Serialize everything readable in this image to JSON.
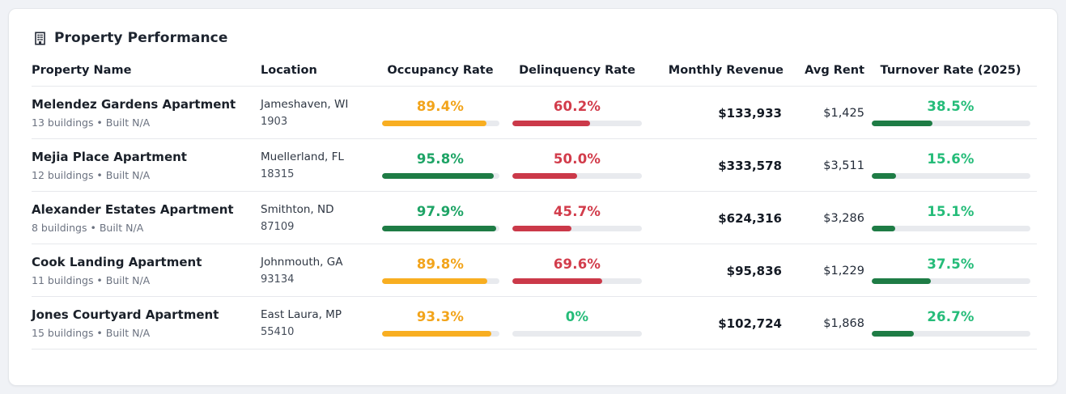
{
  "header": {
    "icon": "building-icon",
    "title": "Property Performance"
  },
  "table": {
    "columns": {
      "name": "Property Name",
      "location": "Location",
      "occupancy": "Occupancy Rate",
      "delinquency": "Delinquency Rate",
      "revenue": "Monthly Revenue",
      "avg_rent": "Avg Rent",
      "turnover": "Turnover Rate (2025)"
    },
    "rows": [
      {
        "name": "Melendez Gardens Apartment",
        "details": "13 buildings • Built N/A",
        "city": "Jameshaven, WI",
        "zip": "1903",
        "occupancy": {
          "label": "89.4%",
          "value": 89.4,
          "tone": "amber"
        },
        "delinquency": {
          "label": "60.2%",
          "value": 60.2,
          "tone": "red"
        },
        "revenue": "$133,933",
        "avg_rent": "$1,425",
        "turnover": {
          "label": "38.5%",
          "value": 38.5,
          "tone": "bright"
        }
      },
      {
        "name": "Mejia Place Apartment",
        "details": "12 buildings • Built N/A",
        "city": "Muellerland, FL",
        "zip": "18315",
        "occupancy": {
          "label": "95.8%",
          "value": 95.8,
          "tone": "green"
        },
        "delinquency": {
          "label": "50.0%",
          "value": 50.0,
          "tone": "red"
        },
        "revenue": "$333,578",
        "avg_rent": "$3,511",
        "turnover": {
          "label": "15.6%",
          "value": 15.6,
          "tone": "bright"
        }
      },
      {
        "name": "Alexander Estates Apartment",
        "details": "8 buildings • Built N/A",
        "city": "Smithton, ND",
        "zip": "87109",
        "occupancy": {
          "label": "97.9%",
          "value": 97.9,
          "tone": "green"
        },
        "delinquency": {
          "label": "45.7%",
          "value": 45.7,
          "tone": "red"
        },
        "revenue": "$624,316",
        "avg_rent": "$3,286",
        "turnover": {
          "label": "15.1%",
          "value": 15.1,
          "tone": "bright"
        }
      },
      {
        "name": "Cook Landing Apartment",
        "details": "11 buildings • Built N/A",
        "city": "Johnmouth, GA",
        "zip": "93134",
        "occupancy": {
          "label": "89.8%",
          "value": 89.8,
          "tone": "amber"
        },
        "delinquency": {
          "label": "69.6%",
          "value": 69.6,
          "tone": "red"
        },
        "revenue": "$95,836",
        "avg_rent": "$1,229",
        "turnover": {
          "label": "37.5%",
          "value": 37.5,
          "tone": "bright"
        }
      },
      {
        "name": "Jones Courtyard Apartment",
        "details": "15 buildings • Built N/A",
        "city": "East Laura, MP",
        "zip": "55410",
        "occupancy": {
          "label": "93.3%",
          "value": 93.3,
          "tone": "amber"
        },
        "delinquency": {
          "label": "0%",
          "value": 0,
          "tone": "bright"
        },
        "revenue": "$102,724",
        "avg_rent": "$1,868",
        "turnover": {
          "label": "26.7%",
          "value": 26.7,
          "tone": "bright"
        }
      }
    ]
  },
  "colors": {
    "amber": "#f2a41b",
    "red": "#d23c4b",
    "green": "#1ea466",
    "bright_green": "#25bc79",
    "bar_dark_green": "#1e7c45",
    "bar_track": "#e8eaee",
    "card_bg": "#ffffff",
    "page_bg": "#f0f2f6",
    "heading_text": "#1e2530"
  }
}
